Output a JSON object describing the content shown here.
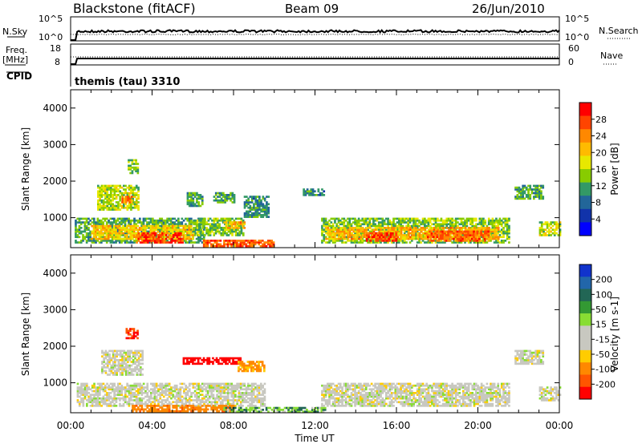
{
  "header": {
    "station": "Blackstone (fitACF)",
    "beam": "Beam 09",
    "date": "26/Jun/2010"
  },
  "noise_panel": {
    "left_label": "N.Sky",
    "left_ticks": [
      "10^5",
      "10^0"
    ],
    "right_ticks": [
      "10^5",
      "10^0"
    ],
    "right_label": "N.Search"
  },
  "freq_panel": {
    "left_label_top": "Freq.",
    "left_label_bottom": "[MHz]",
    "left_ticks": [
      "18",
      "8"
    ],
    "right_ticks": [
      "60",
      "0"
    ],
    "right_label": "Nave"
  },
  "cpid": {
    "label": "CPID",
    "value": "themis (tau) 3310"
  },
  "power_colorbar": {
    "label": "Power [dB]",
    "ticks": [
      "28",
      "24",
      "20",
      "16",
      "12",
      "8",
      "4"
    ],
    "colors": [
      "#ff0000",
      "#ff4400",
      "#ff8800",
      "#ffbb00",
      "#e8e800",
      "#88cc00",
      "#339966",
      "#226699",
      "#1133aa",
      "#0000ff"
    ]
  },
  "velocity_colorbar": {
    "label": "Velocity [m s-1]",
    "ticks": [
      "200",
      "100",
      "50",
      "15",
      "-15",
      "-50",
      "-100",
      "-200"
    ],
    "colors": [
      "#1133cc",
      "#2266aa",
      "#226655",
      "#339933",
      "#88dd33",
      "#c8c8c0",
      "#c8c8c0",
      "#ffcc00",
      "#ff8800",
      "#ff5500",
      "#ff0000"
    ]
  },
  "chart_data": [
    {
      "type": "heatmap",
      "title": "",
      "xlabel": "",
      "ylabel": "Slant Range [km]",
      "xlim": [
        0,
        24
      ],
      "ylim": [
        180,
        4500
      ],
      "y_ticks": [
        "1000",
        "2000",
        "3000",
        "4000"
      ],
      "y_tick_values": [
        1000,
        2000,
        3000,
        4000
      ],
      "x_tick_values": [
        0,
        4,
        8,
        12,
        16,
        20,
        24
      ],
      "quantity": "Power [dB]",
      "regions": [
        {
          "t0": 0.2,
          "t1": 6.5,
          "r0": 300,
          "r1": 1000,
          "v": 12
        },
        {
          "t0": 1.0,
          "t1": 6.0,
          "r0": 400,
          "r1": 800,
          "v": 20
        },
        {
          "t0": 3.2,
          "t1": 5.5,
          "r0": 300,
          "r1": 600,
          "v": 28
        },
        {
          "t0": 6.5,
          "t1": 10.0,
          "r0": 200,
          "r1": 400,
          "v": 26
        },
        {
          "t0": 6.0,
          "t1": 8.5,
          "r0": 500,
          "r1": 1000,
          "v": 14
        },
        {
          "t0": 7.5,
          "t1": 8.5,
          "r0": 700,
          "r1": 900,
          "v": 22
        },
        {
          "t0": 1.3,
          "t1": 3.3,
          "r0": 1200,
          "r1": 1900,
          "v": 16
        },
        {
          "t0": 2.5,
          "t1": 3.0,
          "r0": 1400,
          "r1": 1600,
          "v": 24
        },
        {
          "t0": 2.8,
          "t1": 3.3,
          "r0": 2200,
          "r1": 2600,
          "v": 14
        },
        {
          "t0": 5.7,
          "t1": 6.5,
          "r0": 1300,
          "r1": 1700,
          "v": 12
        },
        {
          "t0": 7.0,
          "t1": 8.0,
          "r0": 1400,
          "r1": 1700,
          "v": 12
        },
        {
          "t0": 8.5,
          "t1": 9.7,
          "r0": 1000,
          "r1": 1600,
          "v": 10
        },
        {
          "t0": 11.4,
          "t1": 12.4,
          "r0": 1600,
          "r1": 1800,
          "v": 10
        },
        {
          "t0": 12.3,
          "t1": 21.5,
          "r0": 300,
          "r1": 1000,
          "v": 14
        },
        {
          "t0": 12.5,
          "t1": 21.0,
          "r0": 400,
          "r1": 750,
          "v": 22
        },
        {
          "t0": 14.5,
          "t1": 16.0,
          "r0": 350,
          "r1": 600,
          "v": 28
        },
        {
          "t0": 17.5,
          "t1": 20.5,
          "r0": 350,
          "r1": 650,
          "v": 26
        },
        {
          "t0": 21.8,
          "t1": 23.2,
          "r0": 1500,
          "r1": 1900,
          "v": 12
        },
        {
          "t0": 23.0,
          "t1": 24.0,
          "r0": 500,
          "r1": 900,
          "v": 16
        }
      ]
    },
    {
      "type": "heatmap",
      "title": "",
      "xlabel": "Time UT",
      "ylabel": "Slant Range [km]",
      "xlim": [
        0,
        24
      ],
      "ylim": [
        180,
        4500
      ],
      "y_ticks": [
        "1000",
        "2000",
        "3000",
        "4000"
      ],
      "y_tick_values": [
        1000,
        2000,
        3000,
        4000
      ],
      "x_ticks": [
        "00:00",
        "04:00",
        "08:00",
        "12:00",
        "16:00",
        "20:00",
        "00:00"
      ],
      "x_tick_values": [
        0,
        4,
        8,
        12,
        16,
        20,
        24
      ],
      "quantity": "Velocity [m s-1]",
      "regions": [
        {
          "t0": 0.3,
          "t1": 9.5,
          "r0": 350,
          "r1": 1000,
          "v": 0
        },
        {
          "t0": 1.5,
          "t1": 3.5,
          "r0": 1200,
          "r1": 1900,
          "v": 0
        },
        {
          "t0": 2.7,
          "t1": 3.3,
          "r0": 2200,
          "r1": 2500,
          "v": -150
        },
        {
          "t0": 3.0,
          "t1": 8.0,
          "r0": 200,
          "r1": 400,
          "v": -60
        },
        {
          "t0": 5.5,
          "t1": 8.3,
          "r0": 1500,
          "r1": 1700,
          "v": -180
        },
        {
          "t0": 8.2,
          "t1": 9.5,
          "r0": 1300,
          "r1": 1600,
          "v": -40
        },
        {
          "t0": 7.5,
          "t1": 12.5,
          "r0": 190,
          "r1": 320,
          "v": 30
        },
        {
          "t0": 12.3,
          "t1": 21.5,
          "r0": 350,
          "r1": 1000,
          "v": 0
        },
        {
          "t0": 21.8,
          "t1": 23.2,
          "r0": 1500,
          "r1": 1900,
          "v": 0
        },
        {
          "t0": 23.0,
          "t1": 24.0,
          "r0": 500,
          "r1": 900,
          "v": 0
        }
      ]
    }
  ]
}
